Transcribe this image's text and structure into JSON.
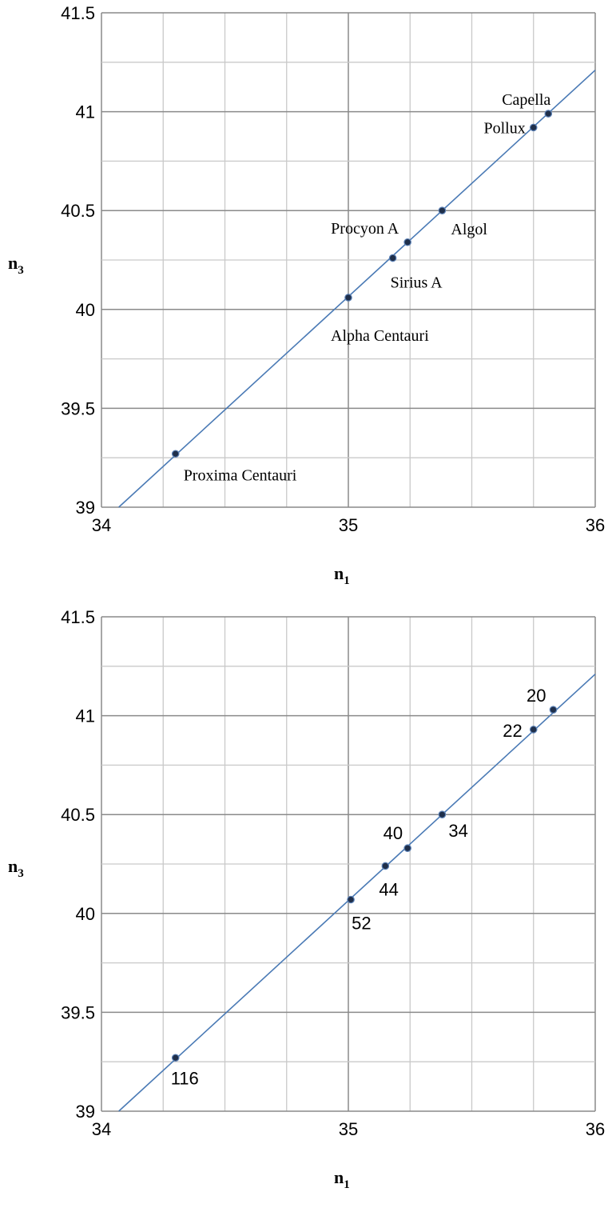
{
  "chart_data": [
    {
      "type": "scatter",
      "xlabel": "n",
      "xlabel_sub": "1",
      "ylabel": "n",
      "ylabel_sub": "3",
      "xlim": [
        34,
        36
      ],
      "ylim": [
        39,
        41.5
      ],
      "x_ticks": [
        "34",
        "35",
        "36"
      ],
      "y_ticks": [
        "39",
        "39.5",
        "40",
        "40.5",
        "41",
        "41.5"
      ],
      "grid": true,
      "fit_line": {
        "x": [
          34.07,
          36.0
        ],
        "y": [
          39.0,
          41.21
        ]
      },
      "points": [
        {
          "label": "Proxima Centauri",
          "x": 34.3,
          "y": 39.27
        },
        {
          "label": "Alpha Centauri",
          "x": 35.0,
          "y": 40.06
        },
        {
          "label": "Sirius A",
          "x": 35.18,
          "y": 40.26
        },
        {
          "label": "Procyon A",
          "x": 35.24,
          "y": 40.34
        },
        {
          "label": "Algol",
          "x": 35.38,
          "y": 40.5
        },
        {
          "label": "Pollux",
          "x": 35.75,
          "y": 40.92
        },
        {
          "label": "Capella",
          "x": 35.81,
          "y": 40.99
        }
      ]
    },
    {
      "type": "scatter",
      "xlabel": "n",
      "xlabel_sub": "1",
      "ylabel": "n",
      "ylabel_sub": "3",
      "xlim": [
        34,
        36
      ],
      "ylim": [
        39,
        41.5
      ],
      "x_ticks": [
        "34",
        "35",
        "36"
      ],
      "y_ticks": [
        "39",
        "39.5",
        "40",
        "40.5",
        "41",
        "41.5"
      ],
      "grid": true,
      "fit_line": {
        "x": [
          34.07,
          36.0
        ],
        "y": [
          39.0,
          41.21
        ]
      },
      "points": [
        {
          "label": "116",
          "x": 34.3,
          "y": 39.27
        },
        {
          "label": "52",
          "x": 35.01,
          "y": 40.07
        },
        {
          "label": "44",
          "x": 35.15,
          "y": 40.24
        },
        {
          "label": "40",
          "x": 35.24,
          "y": 40.33
        },
        {
          "label": "34",
          "x": 35.38,
          "y": 40.5
        },
        {
          "label": "22",
          "x": 35.75,
          "y": 40.93
        },
        {
          "label": "20",
          "x": 35.83,
          "y": 41.03
        }
      ]
    }
  ]
}
